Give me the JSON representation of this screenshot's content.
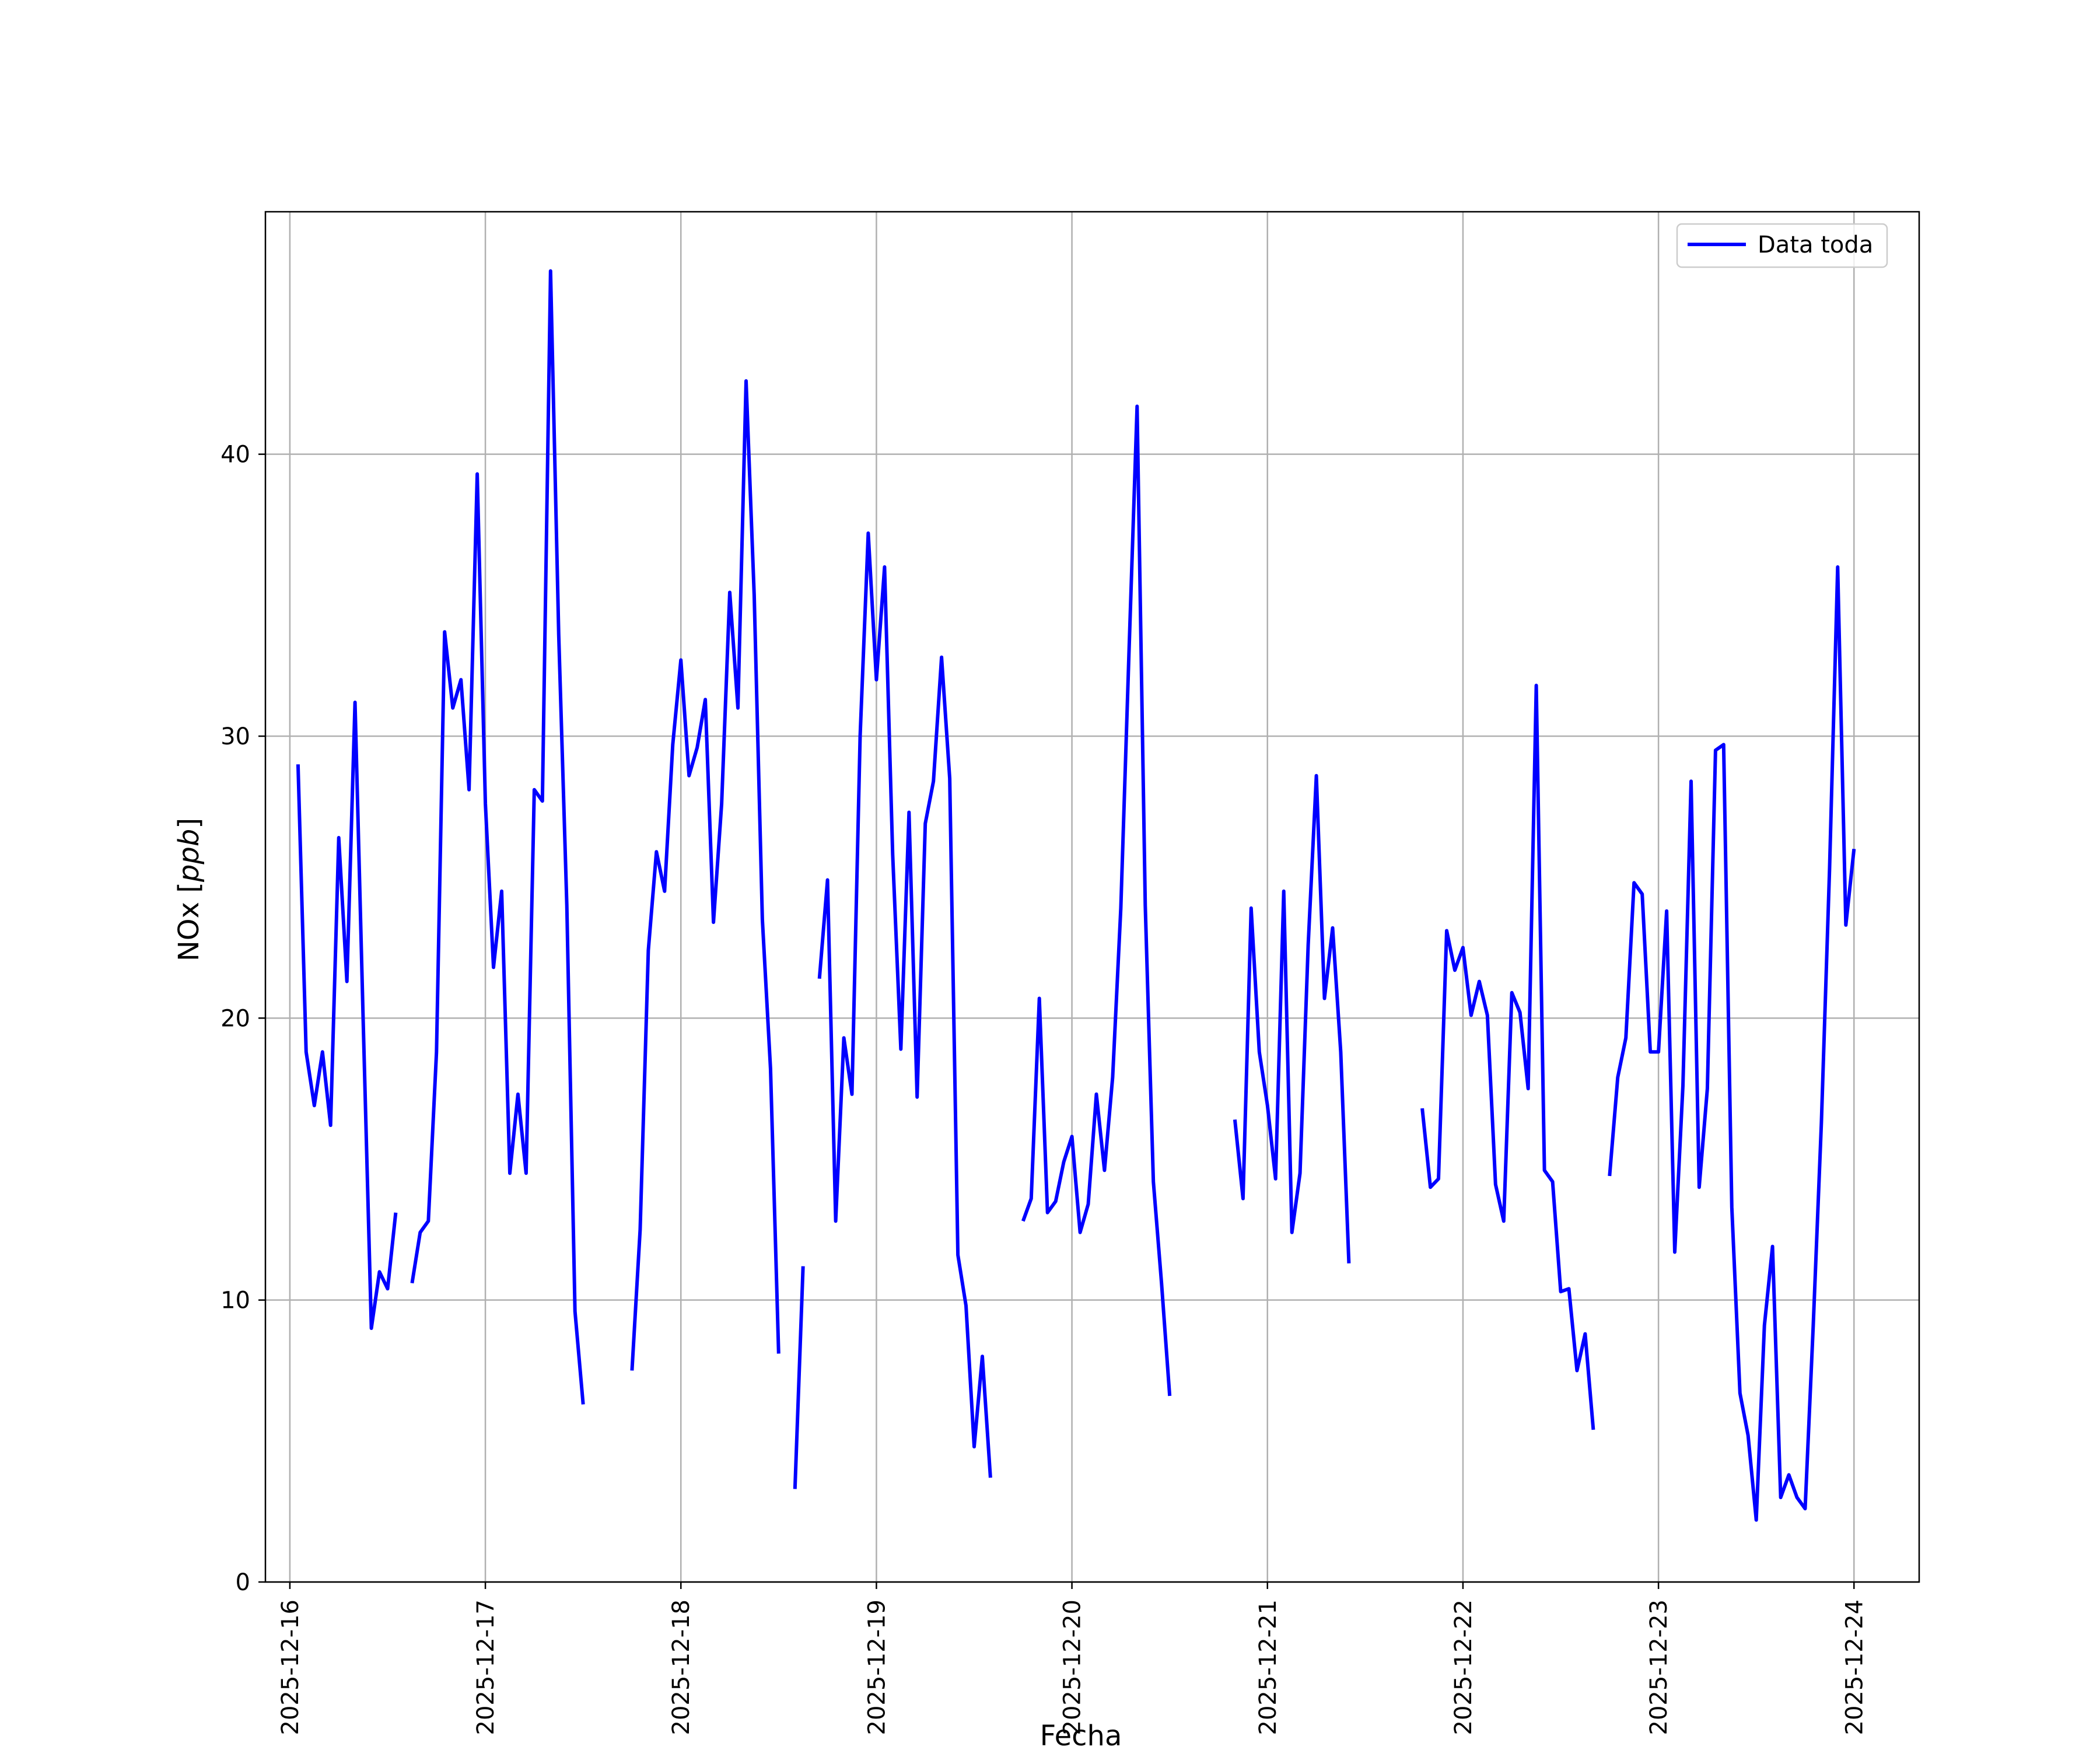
{
  "chart_data": {
    "type": "line",
    "xlabel": "Fecha",
    "ylabel": "NOx [ppb]",
    "ylabel_main": "NOx [",
    "ylabel_unit": "ppb",
    "ylabel_close": "]",
    "x_tick_labels": [
      "2025-12-16",
      "2025-12-17",
      "2025-12-18",
      "2025-12-19",
      "2025-12-20",
      "2025-12-21",
      "2025-12-22",
      "2025-12-23",
      "2025-12-24"
    ],
    "y_tick_labels": [
      "0",
      "10",
      "20",
      "30",
      "40"
    ],
    "y_ticks": [
      0,
      10,
      20,
      30,
      40
    ],
    "xlim": [
      "2025-12-15 21:00",
      "2025-12-24 08:00"
    ],
    "ylim": [
      0,
      48.6
    ],
    "grid": true,
    "legend_position": "top-right",
    "colors": {
      "line": "#0000ff",
      "grid": "#b0b0b0",
      "axis": "#000000"
    },
    "series": [
      {
        "name": "Data toda",
        "points": [
          [
            "2025-12-16 01:00",
            29.0
          ],
          [
            "2025-12-16 02:00",
            18.8
          ],
          [
            "2025-12-16 03:00",
            16.9
          ],
          [
            "2025-12-16 04:00",
            18.8
          ],
          [
            "2025-12-16 05:00",
            16.2
          ],
          [
            "2025-12-16 06:00",
            26.4
          ],
          [
            "2025-12-16 07:00",
            21.3
          ],
          [
            "2025-12-16 08:00",
            31.2
          ],
          [
            "2025-12-16 09:00",
            19.9
          ],
          [
            "2025-12-16 10:00",
            9.0
          ],
          [
            "2025-12-16 11:00",
            11.0
          ],
          [
            "2025-12-16 12:00",
            10.4
          ],
          [
            "2025-12-16 13:00",
            13.1
          ],
          [
            "2025-12-16 15:00",
            null
          ],
          [
            "2025-12-16 15:00",
            10.6
          ],
          [
            "2025-12-16 16:00",
            12.4
          ],
          [
            "2025-12-16 17:00",
            12.8
          ],
          [
            "2025-12-16 18:00",
            18.8
          ],
          [
            "2025-12-16 19:00",
            33.7
          ],
          [
            "2025-12-16 20:00",
            31.0
          ],
          [
            "2025-12-16 21:00",
            32.0
          ],
          [
            "2025-12-16 22:00",
            28.1
          ],
          [
            "2025-12-16 23:00",
            39.3
          ],
          [
            "2025-12-17 00:00",
            27.6
          ],
          [
            "2025-12-17 01:00",
            21.8
          ],
          [
            "2025-12-17 02:00",
            24.5
          ],
          [
            "2025-12-17 03:00",
            14.5
          ],
          [
            "2025-12-17 04:00",
            17.3
          ],
          [
            "2025-12-17 05:00",
            14.5
          ],
          [
            "2025-12-17 06:00",
            28.1
          ],
          [
            "2025-12-17 07:00",
            27.7
          ],
          [
            "2025-12-17 08:00",
            46.5
          ],
          [
            "2025-12-17 09:00",
            33.6
          ],
          [
            "2025-12-17 10:00",
            24.0
          ],
          [
            "2025-12-17 11:00",
            9.6
          ],
          [
            "2025-12-17 12:00",
            6.3
          ],
          [
            "2025-12-17 15:00",
            null
          ],
          [
            "2025-12-17 18:00",
            7.5
          ],
          [
            "2025-12-17 19:00",
            12.5
          ],
          [
            "2025-12-17 20:00",
            22.4
          ],
          [
            "2025-12-17 21:00",
            25.9
          ],
          [
            "2025-12-17 22:00",
            24.5
          ],
          [
            "2025-12-17 23:00",
            29.7
          ],
          [
            "2025-12-18 00:00",
            32.7
          ],
          [
            "2025-12-18 01:00",
            28.6
          ],
          [
            "2025-12-18 02:00",
            29.6
          ],
          [
            "2025-12-18 03:00",
            31.3
          ],
          [
            "2025-12-18 04:00",
            23.4
          ],
          [
            "2025-12-18 05:00",
            27.6
          ],
          [
            "2025-12-18 06:00",
            35.1
          ],
          [
            "2025-12-18 07:00",
            31.0
          ],
          [
            "2025-12-18 08:00",
            42.6
          ],
          [
            "2025-12-18 09:00",
            35.0
          ],
          [
            "2025-12-18 10:00",
            23.5
          ],
          [
            "2025-12-18 11:00",
            18.2
          ],
          [
            "2025-12-18 12:00",
            8.1
          ],
          [
            "2025-12-18 13:00",
            null
          ],
          [
            "2025-12-18 14:00",
            3.3
          ],
          [
            "2025-12-18 15:00",
            11.2
          ],
          [
            "2025-12-18 16:00",
            null
          ],
          [
            "2025-12-18 17:00",
            21.4
          ],
          [
            "2025-12-18 18:00",
            24.9
          ],
          [
            "2025-12-18 19:00",
            12.8
          ],
          [
            "2025-12-18 20:00",
            19.3
          ],
          [
            "2025-12-18 21:00",
            17.3
          ],
          [
            "2025-12-18 22:00",
            30.0
          ],
          [
            "2025-12-18 23:00",
            37.2
          ],
          [
            "2025-12-19 00:00",
            32.0
          ],
          [
            "2025-12-19 01:00",
            36.0
          ],
          [
            "2025-12-19 02:00",
            25.8
          ],
          [
            "2025-12-19 03:00",
            18.9
          ],
          [
            "2025-12-19 04:00",
            27.3
          ],
          [
            "2025-12-19 05:00",
            17.2
          ],
          [
            "2025-12-19 06:00",
            26.9
          ],
          [
            "2025-12-19 07:00",
            28.4
          ],
          [
            "2025-12-19 08:00",
            32.8
          ],
          [
            "2025-12-19 09:00",
            28.5
          ],
          [
            "2025-12-19 10:00",
            11.6
          ],
          [
            "2025-12-19 11:00",
            9.8
          ],
          [
            "2025-12-19 12:00",
            4.8
          ],
          [
            "2025-12-19 13:00",
            8.0
          ],
          [
            "2025-12-19 14:00",
            3.7
          ],
          [
            "2025-12-19 16:00",
            null
          ],
          [
            "2025-12-19 18:00",
            12.8
          ],
          [
            "2025-12-19 19:00",
            13.6
          ],
          [
            "2025-12-19 20:00",
            20.7
          ],
          [
            "2025-12-19 21:00",
            13.1
          ],
          [
            "2025-12-19 22:00",
            13.5
          ],
          [
            "2025-12-19 23:00",
            14.9
          ],
          [
            "2025-12-20 00:00",
            15.8
          ],
          [
            "2025-12-20 01:00",
            12.4
          ],
          [
            "2025-12-20 02:00",
            13.4
          ],
          [
            "2025-12-20 03:00",
            17.3
          ],
          [
            "2025-12-20 04:00",
            14.6
          ],
          [
            "2025-12-20 05:00",
            17.9
          ],
          [
            "2025-12-20 06:00",
            23.9
          ],
          [
            "2025-12-20 07:00",
            32.9
          ],
          [
            "2025-12-20 08:00",
            41.7
          ],
          [
            "2025-12-20 09:00",
            24.0
          ],
          [
            "2025-12-20 10:00",
            14.2
          ],
          [
            "2025-12-20 11:00",
            10.6
          ],
          [
            "2025-12-20 12:00",
            6.6
          ],
          [
            "2025-12-20 16:00",
            null
          ],
          [
            "2025-12-20 20:00",
            16.4
          ],
          [
            "2025-12-20 21:00",
            13.6
          ],
          [
            "2025-12-20 22:00",
            23.9
          ],
          [
            "2025-12-20 23:00",
            18.8
          ],
          [
            "2025-12-21 00:00",
            16.9
          ],
          [
            "2025-12-21 01:00",
            14.3
          ],
          [
            "2025-12-21 02:00",
            24.5
          ],
          [
            "2025-12-21 03:00",
            12.4
          ],
          [
            "2025-12-21 04:00",
            14.5
          ],
          [
            "2025-12-21 05:00",
            22.6
          ],
          [
            "2025-12-21 06:00",
            28.6
          ],
          [
            "2025-12-21 07:00",
            20.7
          ],
          [
            "2025-12-21 08:00",
            23.2
          ],
          [
            "2025-12-21 09:00",
            18.8
          ],
          [
            "2025-12-21 10:00",
            11.3
          ],
          [
            "2025-12-21 15:00",
            null
          ],
          [
            "2025-12-21 19:00",
            16.8
          ],
          [
            "2025-12-21 20:00",
            14.0
          ],
          [
            "2025-12-21 21:00",
            14.3
          ],
          [
            "2025-12-21 22:00",
            23.1
          ],
          [
            "2025-12-21 23:00",
            21.7
          ],
          [
            "2025-12-22 00:00",
            22.5
          ],
          [
            "2025-12-22 01:00",
            20.1
          ],
          [
            "2025-12-22 02:00",
            21.3
          ],
          [
            "2025-12-22 03:00",
            20.1
          ],
          [
            "2025-12-22 04:00",
            14.1
          ],
          [
            "2025-12-22 05:00",
            12.8
          ],
          [
            "2025-12-22 06:00",
            20.9
          ],
          [
            "2025-12-22 07:00",
            20.2
          ],
          [
            "2025-12-22 08:00",
            17.5
          ],
          [
            "2025-12-22 09:00",
            31.8
          ],
          [
            "2025-12-22 10:00",
            14.6
          ],
          [
            "2025-12-22 11:00",
            14.2
          ],
          [
            "2025-12-22 12:00",
            10.3
          ],
          [
            "2025-12-22 13:00",
            10.4
          ],
          [
            "2025-12-22 14:00",
            7.5
          ],
          [
            "2025-12-22 15:00",
            8.8
          ],
          [
            "2025-12-22 16:00",
            5.4
          ],
          [
            "2025-12-22 17:00",
            null
          ],
          [
            "2025-12-22 18:00",
            14.4
          ],
          [
            "2025-12-22 19:00",
            17.9
          ],
          [
            "2025-12-22 20:00",
            19.3
          ],
          [
            "2025-12-22 21:00",
            24.8
          ],
          [
            "2025-12-22 22:00",
            24.4
          ],
          [
            "2025-12-22 23:00",
            18.8
          ],
          [
            "2025-12-23 00:00",
            18.8
          ],
          [
            "2025-12-23 01:00",
            23.8
          ],
          [
            "2025-12-23 02:00",
            11.7
          ],
          [
            "2025-12-23 03:00",
            17.6
          ],
          [
            "2025-12-23 04:00",
            28.4
          ],
          [
            "2025-12-23 05:00",
            14.0
          ],
          [
            "2025-12-23 06:00",
            17.5
          ],
          [
            "2025-12-23 07:00",
            29.5
          ],
          [
            "2025-12-23 08:00",
            29.7
          ],
          [
            "2025-12-23 09:00",
            13.3
          ],
          [
            "2025-12-23 10:00",
            6.7
          ],
          [
            "2025-12-23 11:00",
            5.2
          ],
          [
            "2025-12-23 12:00",
            2.2
          ],
          [
            "2025-12-23 13:00",
            9.1
          ],
          [
            "2025-12-23 14:00",
            11.9
          ],
          [
            "2025-12-23 15:00",
            3.0
          ],
          [
            "2025-12-23 16:00",
            3.8
          ],
          [
            "2025-12-23 17:00",
            3.0
          ],
          [
            "2025-12-23 18:00",
            2.6
          ],
          [
            "2025-12-23 19:00",
            9.1
          ],
          [
            "2025-12-23 20:00",
            16.3
          ],
          [
            "2025-12-23 21:00",
            25.3
          ],
          [
            "2025-12-23 22:00",
            36.0
          ],
          [
            "2025-12-23 23:00",
            23.3
          ],
          [
            "2025-12-24 00:00",
            26.0
          ]
        ]
      }
    ]
  }
}
